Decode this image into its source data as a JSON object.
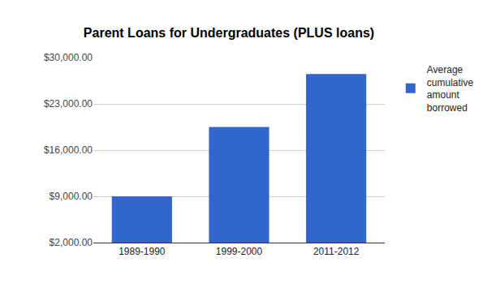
{
  "chart_data": {
    "type": "bar",
    "title": "Parent Loans for Undergraduates (PLUS loans)",
    "categories": [
      "1989-1990",
      "1999-2000",
      "2011-2012"
    ],
    "series": [
      {
        "name": "Average cumulative amount borrowed",
        "color": "#3366cc",
        "values": [
          9000,
          19500,
          27500
        ]
      }
    ],
    "ylim": [
      2000,
      30000
    ],
    "yticks": [
      {
        "value": 2000,
        "label": "$2,000.00"
      },
      {
        "value": 9000,
        "label": "$9,000.00"
      },
      {
        "value": 16000,
        "label": "$16,000.00"
      },
      {
        "value": 23000,
        "label": "$23,000.00"
      },
      {
        "value": 30000,
        "label": "$30,000.00"
      }
    ],
    "grid": true,
    "legend": "right"
  }
}
